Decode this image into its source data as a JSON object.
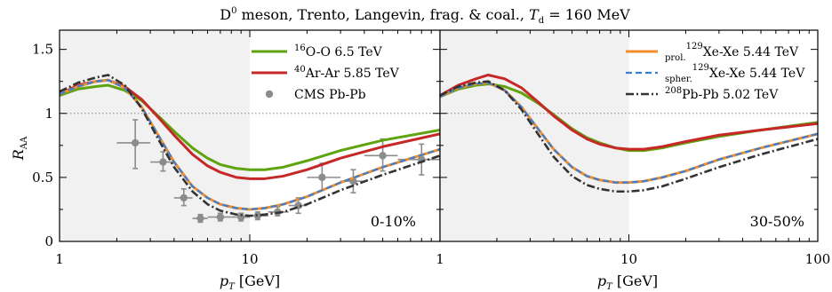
{
  "chart_data": {
    "type": "line",
    "title": "D0 meson, Trento, Langevin, frag. & coal., Td = 160 MeV",
    "title_parts": {
      "particle": "D",
      "particle_sup": "0",
      "text": " meson, Trento, Langevin, frag. & coal., ",
      "var": "T",
      "var_sub": "d",
      "value": " = 160 MeV"
    },
    "xlabel": "pT [GeV]",
    "xlabel_parts": {
      "var": "p",
      "sub": "T",
      "unit": " [GeV]"
    },
    "ylabel": "RAA",
    "ylabel_parts": {
      "var": "R",
      "sub": "AA"
    },
    "reference_line": 1,
    "panels": [
      {
        "centrality": "0-10%",
        "x_scale": "log",
        "xlim": [
          1,
          100
        ],
        "ylim": [
          0,
          1.65
        ],
        "x_ticks": [
          {
            "v": 1,
            "label": "1"
          },
          {
            "v": 10,
            "label": "10"
          }
        ],
        "y_ticks": [
          {
            "v": 0,
            "label": "0"
          },
          {
            "v": 0.5,
            "label": "0.5"
          },
          {
            "v": 1,
            "label": "1"
          },
          {
            "v": 1.5,
            "label": "1.5"
          }
        ],
        "shaded_region": [
          1,
          10
        ],
        "legend": [
          {
            "key": "oo",
            "iso": "16",
            "text": "O-O 6.5 TeV"
          },
          {
            "key": "arar",
            "iso": "40",
            "text": "Ar-Ar 5.85 TeV"
          },
          {
            "key": "cms",
            "text": "CMS Pb-Pb"
          }
        ],
        "series": [
          {
            "key": "oo",
            "name": "16O-O 6.5 TeV",
            "color": "#5fa30f",
            "dash": "",
            "width": 3,
            "x": [
              1,
              1.25,
              1.55,
              1.8,
              2.2,
              2.7,
              3.3,
              4,
              5,
              6,
              7,
              8.5,
              10,
              12,
              15,
              20,
              30,
              50,
              100
            ],
            "y": [
              1.14,
              1.19,
              1.21,
              1.22,
              1.18,
              1.1,
              0.98,
              0.86,
              0.73,
              0.65,
              0.6,
              0.57,
              0.56,
              0.56,
              0.58,
              0.63,
              0.71,
              0.79,
              0.87
            ]
          },
          {
            "key": "arar",
            "name": "40Ar-Ar 5.85 TeV",
            "color": "#c62828",
            "dash": "",
            "width": 3,
            "x": [
              1,
              1.25,
              1.55,
              1.8,
              2.2,
              2.7,
              3.3,
              4,
              5,
              6,
              7,
              8.5,
              10,
              12,
              15,
              20,
              30,
              50,
              100
            ],
            "y": [
              1.15,
              1.22,
              1.25,
              1.26,
              1.21,
              1.11,
              0.97,
              0.83,
              0.68,
              0.59,
              0.54,
              0.5,
              0.49,
              0.49,
              0.51,
              0.56,
              0.65,
              0.74,
              0.84
            ]
          },
          {
            "key": "xe_prol",
            "name": "prol. 129Xe-Xe 5.44 TeV",
            "color": "#f28e2b",
            "dash": "",
            "width": 3,
            "x": [
              1,
              1.25,
              1.55,
              1.8,
              2.2,
              2.7,
              3.3,
              4,
              5,
              6,
              7,
              8.5,
              10,
              12,
              15,
              20,
              30,
              50,
              100
            ],
            "y": [
              1.15,
              1.21,
              1.25,
              1.26,
              1.2,
              1.05,
              0.83,
              0.62,
              0.43,
              0.34,
              0.29,
              0.26,
              0.25,
              0.26,
              0.29,
              0.35,
              0.46,
              0.58,
              0.72
            ]
          },
          {
            "key": "xe_spher",
            "name": "spher. 129Xe-Xe 5.44 TeV",
            "color": "#3a7fd5",
            "dash": "7 4",
            "width": 2.2,
            "x": [
              1,
              1.25,
              1.55,
              1.8,
              2.2,
              2.7,
              3.3,
              4,
              5,
              6,
              7,
              8.5,
              10,
              12,
              15,
              20,
              30,
              50,
              100
            ],
            "y": [
              1.15,
              1.21,
              1.25,
              1.26,
              1.2,
              1.05,
              0.83,
              0.62,
              0.43,
              0.34,
              0.29,
              0.26,
              0.25,
              0.26,
              0.29,
              0.35,
              0.46,
              0.58,
              0.72
            ]
          },
          {
            "key": "pbpb",
            "name": "208Pb-Pb 5.02 TeV",
            "color": "#333333",
            "dash": "9 3 2 3",
            "width": 2.6,
            "x": [
              1,
              1.25,
              1.55,
              1.8,
              2.2,
              2.7,
              3.3,
              4,
              5,
              6,
              7,
              8.5,
              10,
              12,
              15,
              20,
              30,
              50,
              100
            ],
            "y": [
              1.17,
              1.24,
              1.28,
              1.3,
              1.22,
              1.04,
              0.8,
              0.58,
              0.39,
              0.29,
              0.24,
              0.21,
              0.2,
              0.21,
              0.23,
              0.29,
              0.4,
              0.52,
              0.67
            ]
          }
        ],
        "cms_data": {
          "name": "CMS Pb-Pb",
          "color": "#8c8c8c",
          "points": [
            {
              "x": 2.5,
              "y": 0.77,
              "xl": 2.0,
              "xh": 3.0,
              "yl": 0.57,
              "yh": 0.95
            },
            {
              "x": 3.5,
              "y": 0.62,
              "xl": 3.0,
              "xh": 4.0,
              "yl": 0.55,
              "yh": 0.7
            },
            {
              "x": 4.5,
              "y": 0.34,
              "xl": 4.0,
              "xh": 5.0,
              "yl": 0.28,
              "yh": 0.41
            },
            {
              "x": 5.5,
              "y": 0.18,
              "xl": 5.0,
              "xh": 6.0,
              "yl": 0.15,
              "yh": 0.21
            },
            {
              "x": 7.0,
              "y": 0.19,
              "xl": 6.0,
              "xh": 8.0,
              "yl": 0.16,
              "yh": 0.22
            },
            {
              "x": 9.0,
              "y": 0.19,
              "xl": 8.0,
              "xh": 10.0,
              "yl": 0.16,
              "yh": 0.22
            },
            {
              "x": 11.0,
              "y": 0.2,
              "xl": 10.0,
              "xh": 12.5,
              "yl": 0.17,
              "yh": 0.23
            },
            {
              "x": 14.0,
              "y": 0.23,
              "xl": 12.5,
              "xh": 16.0,
              "yl": 0.2,
              "yh": 0.27
            },
            {
              "x": 18.0,
              "y": 0.28,
              "xl": 16.0,
              "xh": 20.0,
              "yl": 0.22,
              "yh": 0.34
            },
            {
              "x": 24.0,
              "y": 0.5,
              "xl": 20.0,
              "xh": 30.0,
              "yl": 0.4,
              "yh": 0.61
            },
            {
              "x": 35.0,
              "y": 0.47,
              "xl": 30.0,
              "xh": 40.0,
              "yl": 0.38,
              "yh": 0.56
            },
            {
              "x": 50.0,
              "y": 0.67,
              "xl": 40.0,
              "xh": 60.0,
              "yl": 0.55,
              "yh": 0.8
            },
            {
              "x": 80.0,
              "y": 0.64,
              "xl": 60.0,
              "xh": 100.0,
              "yl": 0.52,
              "yh": 0.76
            }
          ]
        }
      },
      {
        "centrality": "30-50%",
        "x_scale": "log",
        "xlim": [
          1,
          100
        ],
        "ylim": [
          0,
          1.65
        ],
        "x_ticks": [
          {
            "v": 1,
            "label": "1"
          },
          {
            "v": 10,
            "label": "10"
          },
          {
            "v": 100,
            "label": "100"
          }
        ],
        "y_ticks": [],
        "shaded_region": [
          1,
          10
        ],
        "legend": [
          {
            "key": "xe_prol",
            "pre_sub": "prol.",
            "iso": "129",
            "text": "Xe-Xe 5.44 TeV"
          },
          {
            "key": "xe_spher",
            "pre_sub": "spher.",
            "iso": "129",
            "text": "Xe-Xe 5.44 TeV"
          },
          {
            "key": "pbpb",
            "iso": "208",
            "text": "Pb-Pb 5.02 TeV"
          }
        ],
        "series": [
          {
            "key": "oo",
            "name": "16O-O 6.5 TeV",
            "color": "#5fa30f",
            "dash": "",
            "width": 3,
            "x": [
              1,
              1.25,
              1.55,
              1.8,
              2.2,
              2.7,
              3.3,
              4,
              5,
              6,
              7,
              8.5,
              10,
              12,
              15,
              20,
              30,
              50,
              100
            ],
            "y": [
              1.13,
              1.19,
              1.22,
              1.23,
              1.21,
              1.16,
              1.08,
              0.99,
              0.88,
              0.81,
              0.77,
              0.73,
              0.71,
              0.71,
              0.73,
              0.77,
              0.82,
              0.87,
              0.93
            ]
          },
          {
            "key": "arar",
            "name": "40Ar-Ar 5.85 TeV",
            "color": "#c62828",
            "dash": "",
            "width": 3,
            "x": [
              1,
              1.25,
              1.55,
              1.8,
              2.2,
              2.7,
              3.3,
              4,
              5,
              6,
              7,
              8.5,
              10,
              12,
              15,
              20,
              30,
              50,
              100
            ],
            "y": [
              1.14,
              1.22,
              1.27,
              1.3,
              1.27,
              1.2,
              1.09,
              0.98,
              0.87,
              0.8,
              0.76,
              0.73,
              0.72,
              0.72,
              0.74,
              0.78,
              0.83,
              0.87,
              0.92
            ]
          },
          {
            "key": "xe_prol",
            "name": "prol. 129Xe-Xe 5.44 TeV",
            "color": "#f28e2b",
            "dash": "",
            "width": 3,
            "x": [
              1,
              1.25,
              1.55,
              1.8,
              2.2,
              2.7,
              3.3,
              4,
              5,
              6,
              7,
              8.5,
              10,
              12,
              15,
              20,
              30,
              50,
              100
            ],
            "y": [
              1.13,
              1.2,
              1.23,
              1.24,
              1.18,
              1.05,
              0.88,
              0.72,
              0.58,
              0.51,
              0.48,
              0.46,
              0.46,
              0.47,
              0.5,
              0.55,
              0.64,
              0.73,
              0.84
            ]
          },
          {
            "key": "xe_spher",
            "name": "spher. 129Xe-Xe 5.44 TeV",
            "color": "#3a7fd5",
            "dash": "7 4",
            "width": 2.2,
            "x": [
              1,
              1.25,
              1.55,
              1.8,
              2.2,
              2.7,
              3.3,
              4,
              5,
              6,
              7,
              8.5,
              10,
              12,
              15,
              20,
              30,
              50,
              100
            ],
            "y": [
              1.13,
              1.2,
              1.23,
              1.24,
              1.18,
              1.05,
              0.88,
              0.72,
              0.58,
              0.51,
              0.48,
              0.46,
              0.46,
              0.47,
              0.5,
              0.55,
              0.64,
              0.73,
              0.84
            ]
          },
          {
            "key": "pbpb",
            "name": "208Pb-Pb 5.02 TeV",
            "color": "#333333",
            "dash": "9 3 2 3",
            "width": 2.6,
            "x": [
              1,
              1.25,
              1.55,
              1.8,
              2.2,
              2.7,
              3.3,
              4,
              5,
              6,
              7,
              8.5,
              10,
              12,
              15,
              20,
              30,
              50,
              100
            ],
            "y": [
              1.14,
              1.21,
              1.24,
              1.25,
              1.18,
              1.03,
              0.84,
              0.66,
              0.51,
              0.44,
              0.41,
              0.39,
              0.39,
              0.4,
              0.43,
              0.49,
              0.58,
              0.68,
              0.8
            ]
          }
        ]
      }
    ]
  }
}
